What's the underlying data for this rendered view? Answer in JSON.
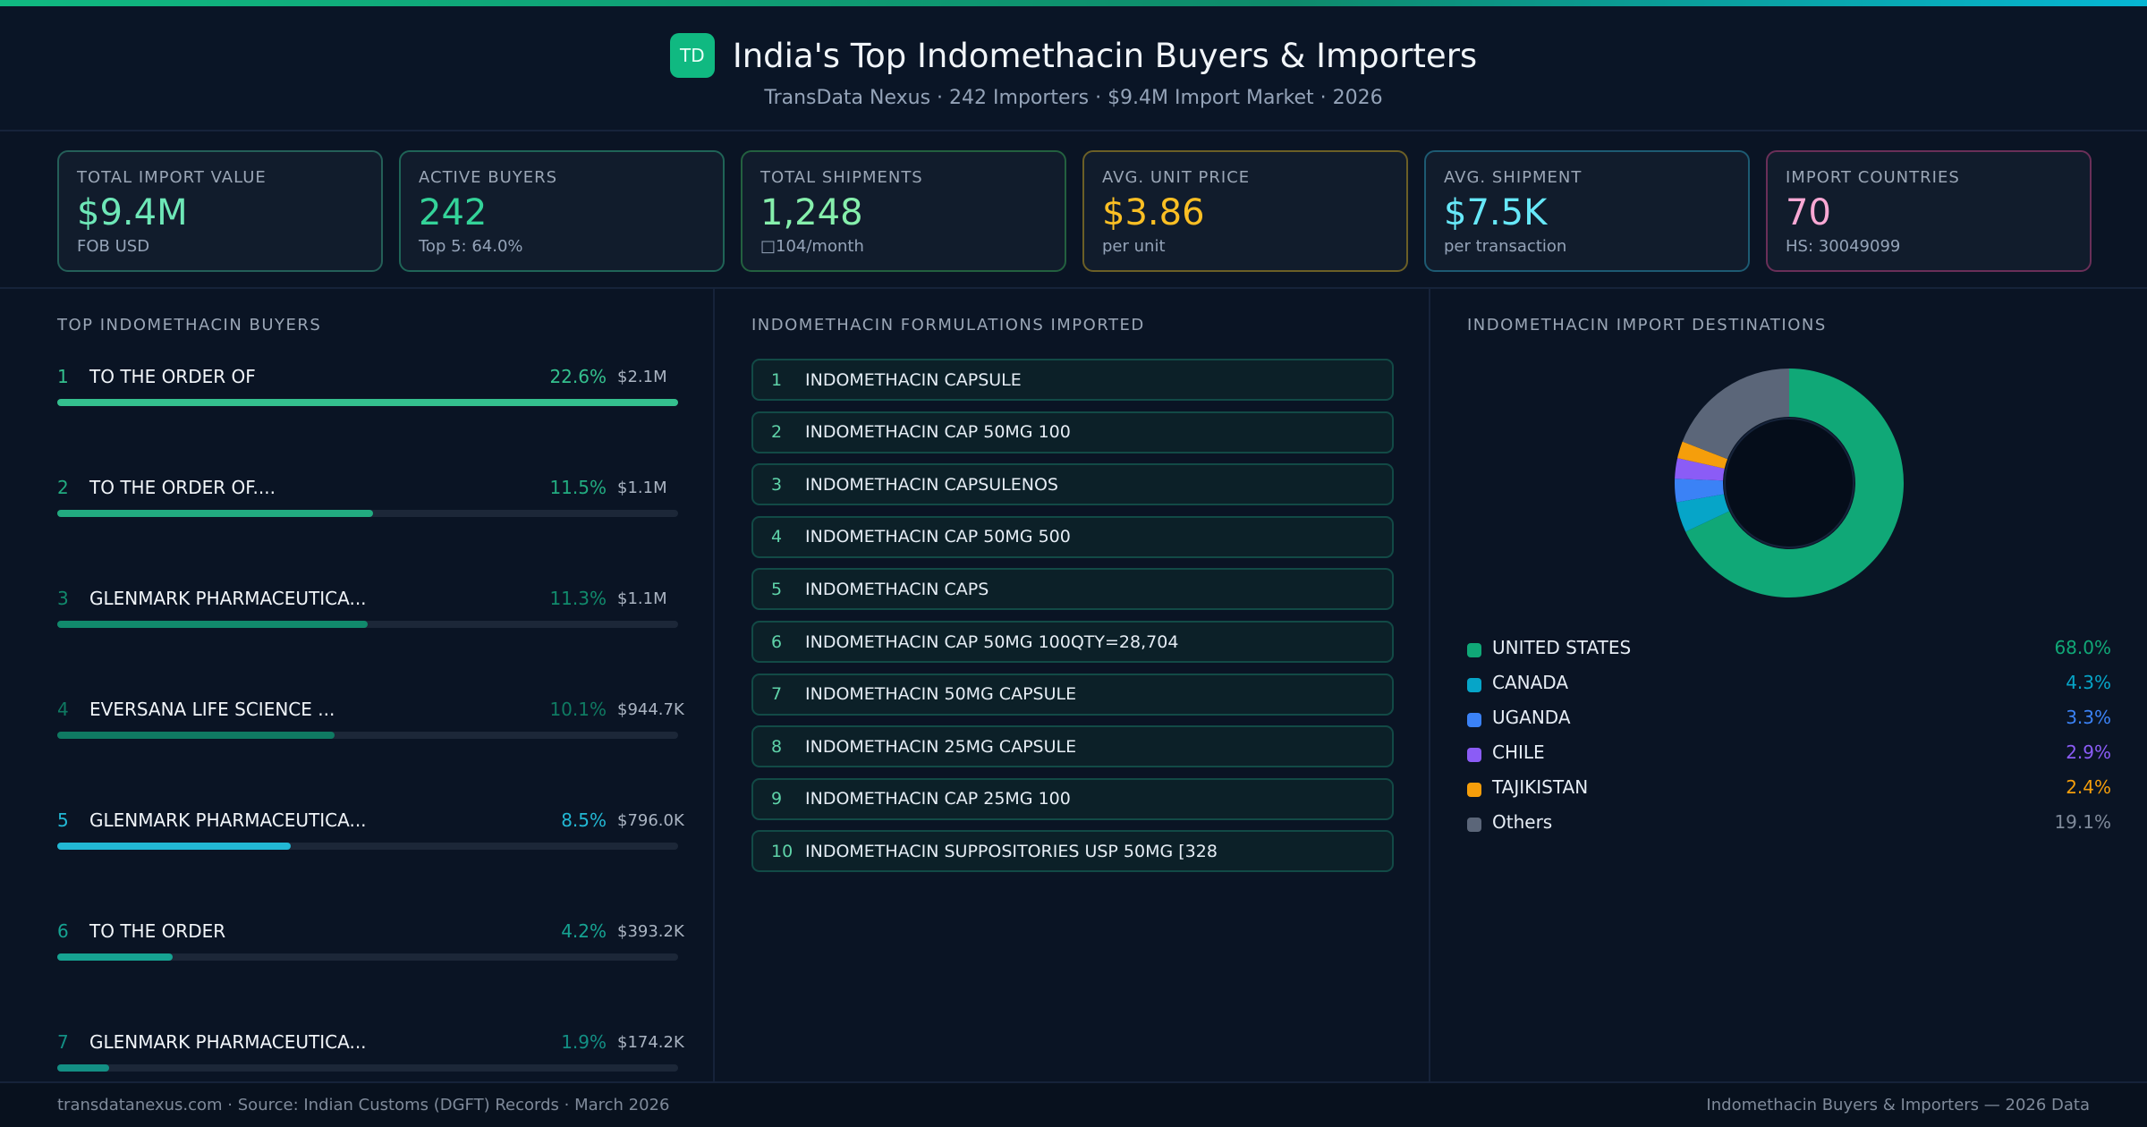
{
  "header": {
    "logo": "TD",
    "title": "India's Top Indomethacin Buyers & Importers",
    "subtitle": "TransData Nexus · 242 Importers · $9.4M Import Market · 2026"
  },
  "cards": [
    {
      "label": "TOTAL IMPORT VALUE",
      "value": "$9.4M",
      "sub": "FOB USD",
      "color": "#6ee7b7",
      "border": "#245f58"
    },
    {
      "label": "ACTIVE BUYERS",
      "value": "242",
      "sub": "Top 5: 64.0%",
      "color": "#34d399",
      "border": "#1f6457"
    },
    {
      "label": "TOTAL SHIPMENTS",
      "value": "1,248",
      "sub": "□104/month",
      "color": "#86efac",
      "border": "#23603f"
    },
    {
      "label": "AVG. UNIT PRICE",
      "value": "$3.86",
      "sub": "per unit",
      "color": "#fbbf24",
      "border": "#6b5f26"
    },
    {
      "label": "AVG. SHIPMENT",
      "value": "$7.5K",
      "sub": "per transaction",
      "color": "#67e8f9",
      "border": "#1d5a72"
    },
    {
      "label": "IMPORT COUNTRIES",
      "value": "70",
      "sub": "HS: 30049099",
      "color": "#f9a8d4",
      "border": "#6a2f58"
    }
  ],
  "buyers": {
    "title": "TOP INDOMETHACIN BUYERS",
    "items": [
      {
        "rank": "1",
        "name": "TO THE ORDER OF",
        "pct": 22.6,
        "pct_label": "22.6%",
        "value": "$2.1M",
        "color": "#34c08e"
      },
      {
        "rank": "2",
        "name": "TO THE ORDER OF....",
        "pct": 11.5,
        "pct_label": "11.5%",
        "value": "$1.1M",
        "color": "#22ab80"
      },
      {
        "rank": "3",
        "name": "GLENMARK PHARMACEUTICA...",
        "pct": 11.3,
        "pct_label": "11.3%",
        "value": "$1.1M",
        "color": "#118a6c"
      },
      {
        "rank": "4",
        "name": "EVERSANA LIFE SCIENCE ...",
        "pct": 10.1,
        "pct_label": "10.1%",
        "value": "$944.7K",
        "color": "#0f7a62"
      },
      {
        "rank": "5",
        "name": "GLENMARK PHARMACEUTICA...",
        "pct": 8.5,
        "pct_label": "8.5%",
        "value": "$796.0K",
        "color": "#22b8d4"
      },
      {
        "rank": "6",
        "name": "TO THE ORDER",
        "pct": 4.2,
        "pct_label": "4.2%",
        "value": "$393.2K",
        "color": "#16a392"
      },
      {
        "rank": "7",
        "name": "GLENMARK PHARMACEUTICA...",
        "pct": 1.9,
        "pct_label": "1.9%",
        "value": "$174.2K",
        "color": "#138f84"
      }
    ]
  },
  "formulations": {
    "title": "INDOMETHACIN FORMULATIONS IMPORTED",
    "items": [
      {
        "rank": "1",
        "name": "INDOMETHACIN CAPSULE"
      },
      {
        "rank": "2",
        "name": "INDOMETHACIN CAP 50MG 100"
      },
      {
        "rank": "3",
        "name": "INDOMETHACIN CAPSULENOS"
      },
      {
        "rank": "4",
        "name": "INDOMETHACIN CAP 50MG 500"
      },
      {
        "rank": "5",
        "name": "INDOMETHACIN CAPS"
      },
      {
        "rank": "6",
        "name": "INDOMETHACIN CAP 50MG 100QTY=28,704"
      },
      {
        "rank": "7",
        "name": "INDOMETHACIN 50MG CAPSULE"
      },
      {
        "rank": "8",
        "name": "INDOMETHACIN 25MG CAPSULE"
      },
      {
        "rank": "9",
        "name": "INDOMETHACIN CAP 25MG 100"
      },
      {
        "rank": "10",
        "name": "INDOMETHACIN SUPPOSITORIES USP 50MG [328"
      }
    ]
  },
  "destinations": {
    "title": "INDOMETHACIN IMPORT DESTINATIONS",
    "chart_data": {
      "type": "pie",
      "series": [
        {
          "name": "UNITED STATES",
          "value": 68.0,
          "label": "68.0%",
          "color": "#10a877"
        },
        {
          "name": "CANADA",
          "value": 4.3,
          "label": "4.3%",
          "color": "#06a5c8"
        },
        {
          "name": "UGANDA",
          "value": 3.3,
          "label": "3.3%",
          "color": "#3b82f6"
        },
        {
          "name": "CHILE",
          "value": 2.9,
          "label": "2.9%",
          "color": "#8b5cf6"
        },
        {
          "name": "TAJIKISTAN",
          "value": 2.4,
          "label": "2.4%",
          "color": "#f59e0b"
        },
        {
          "name": "Others",
          "value": 19.1,
          "label": "19.1%",
          "color": "#5b6679"
        }
      ]
    }
  },
  "footer": {
    "left": "transdatanexus.com · Source: Indian Customs (DGFT) Records · March 2026",
    "right": "Indomethacin Buyers & Importers — 2026 Data"
  }
}
